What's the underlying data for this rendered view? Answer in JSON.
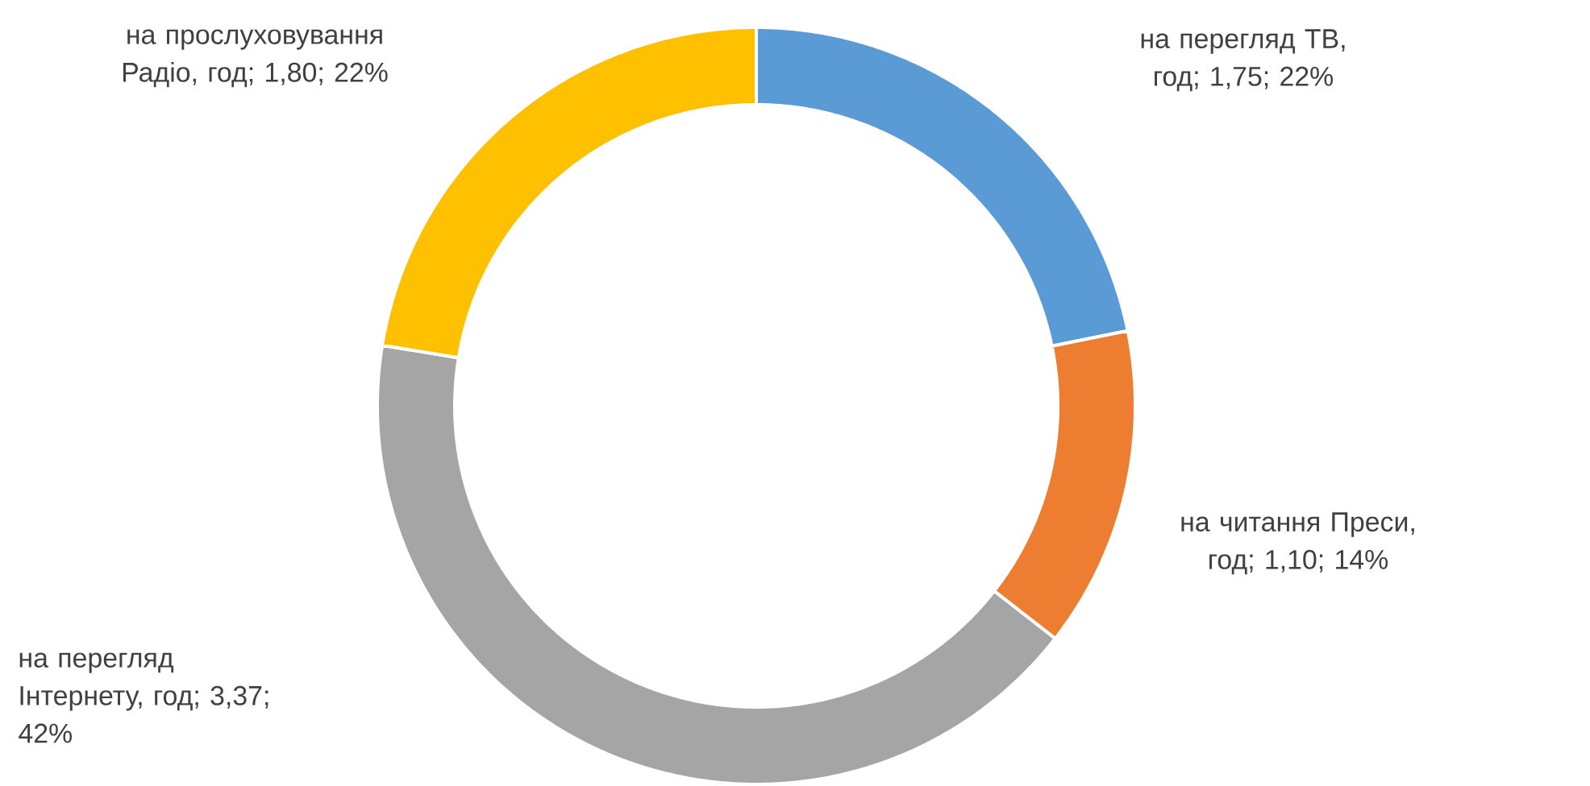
{
  "chart_data": {
    "type": "donut",
    "categories": [
      "на перегляд ТВ, год",
      "на читання Преси, год",
      "на перегляд Інтернету, год",
      "на прослуховування Радіо, год"
    ],
    "values": [
      1.75,
      1.1,
      3.37,
      1.8
    ],
    "value_labels": [
      "; 1,75; 22%",
      "; 1,10; 14%",
      "; 3,37; 42%",
      "; 1,80; 22%"
    ],
    "colors": [
      "#5b9bd5",
      "#ed7d31",
      "#a5a5a5",
      "#ffc000"
    ]
  }
}
